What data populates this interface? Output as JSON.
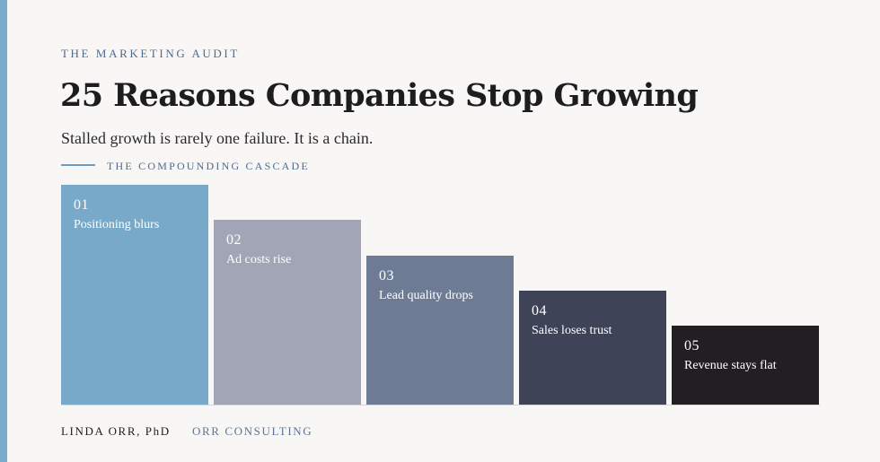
{
  "header": {
    "eyebrow": "THE MARKETING AUDIT",
    "title": "25 Reasons Companies Stop Growing",
    "subtitle": "Stalled growth is rarely one failure. It is a chain."
  },
  "section": {
    "label": "THE COMPOUNDING CASCADE"
  },
  "cascade": {
    "steps": [
      {
        "num": "01",
        "label": "Positioning blurs",
        "color": "#79a9c8"
      },
      {
        "num": "02",
        "label": "Ad costs rise",
        "color": "#a2a5b5"
      },
      {
        "num": "03",
        "label": "Lead quality drops",
        "color": "#6e7b95"
      },
      {
        "num": "04",
        "label": "Sales loses trust",
        "color": "#3e4358"
      },
      {
        "num": "05",
        "label": "Revenue stays flat",
        "color": "#221f22"
      }
    ]
  },
  "footer": {
    "author": "LINDA ORR, PhD",
    "org": "ORR CONSULTING"
  },
  "colors": {
    "accent": "#7aaac9",
    "background": "#f8f7f5",
    "text": "#1d1c1f"
  }
}
